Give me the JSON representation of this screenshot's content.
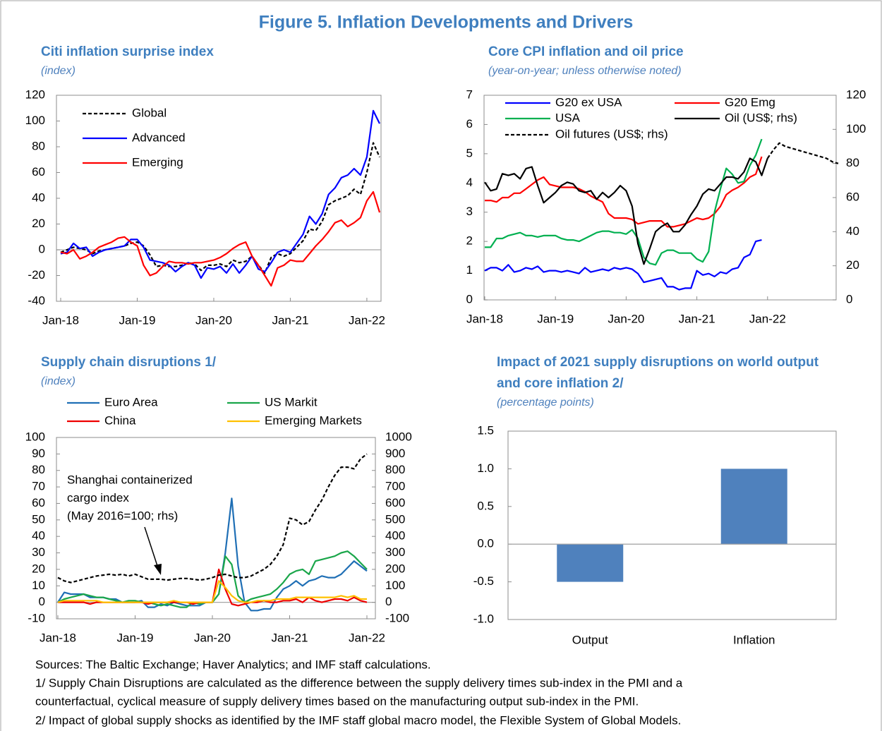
{
  "figure_title": "Figure 5. Inflation Developments and Drivers",
  "notes": [
    "Sources: The Baltic Exchange; Haver Analytics; and IMF staff calculations.",
    "1/ Supply Chain Disruptions are calculated as the difference between the supply delivery times sub-index in the PMI and a",
    "counterfactual, cyclical measure of supply delivery times based on the manufacturing output sub-index in the PMI.",
    "2/ Impact of global supply shocks as identified by the IMF staff global macro model, the Flexible System of Global Models."
  ],
  "chart_data": [
    {
      "type": "line",
      "title": "Citi inflation surprise index",
      "subtitle": "(index)",
      "categories": [
        "Jan-18",
        null,
        null,
        null,
        null,
        null,
        null,
        null,
        null,
        null,
        null,
        null,
        "Jan-19",
        null,
        null,
        null,
        null,
        null,
        null,
        null,
        null,
        null,
        null,
        null,
        "Jan-20",
        null,
        null,
        null,
        null,
        null,
        null,
        null,
        null,
        null,
        null,
        null,
        "Jan-21",
        null,
        null,
        null,
        null,
        null,
        null,
        null,
        null,
        null,
        null,
        null,
        "Jan-22",
        null,
        null
      ],
      "ylim": [
        -40,
        120
      ],
      "yticks": [
        -40,
        -20,
        0,
        20,
        40,
        60,
        80,
        100,
        120
      ],
      "series": [
        {
          "name": "Global",
          "color": "#000000",
          "dash": true,
          "values": [
            -2,
            0,
            2,
            1,
            0,
            -3,
            -1,
            0,
            1,
            2,
            3,
            5,
            6,
            3,
            -4,
            -13,
            -12,
            -13,
            -13,
            -12,
            -10,
            -11,
            -16,
            -12,
            -12,
            -11,
            -13,
            -8,
            -10,
            -9,
            -5,
            -12,
            -18,
            -6,
            -3,
            -5,
            -3,
            2,
            7,
            16,
            15,
            22,
            35,
            38,
            40,
            42,
            47,
            43,
            60,
            83,
            72
          ]
        },
        {
          "name": "Advanced",
          "color": "#0000ff",
          "values": [
            -3,
            -2,
            5,
            1,
            2,
            -5,
            -2,
            0,
            1,
            2,
            3,
            8,
            8,
            2,
            -8,
            -9,
            -10,
            -12,
            -17,
            -13,
            -10,
            -12,
            -22,
            -14,
            -15,
            -13,
            -18,
            -11,
            -18,
            -12,
            -5,
            -15,
            -17,
            -10,
            -2,
            0,
            -2,
            5,
            12,
            26,
            20,
            28,
            43,
            48,
            56,
            58,
            63,
            58,
            72,
            108,
            98
          ]
        },
        {
          "name": "Emerging",
          "color": "#ff0000",
          "values": [
            -2,
            -3,
            0,
            -7,
            -5,
            -2,
            2,
            4,
            6,
            9,
            10,
            6,
            3,
            -12,
            -20,
            -18,
            -13,
            -9,
            -10,
            -10,
            -11,
            -10,
            -10,
            -9,
            -8,
            -6,
            -3,
            1,
            4,
            6,
            -5,
            -12,
            -20,
            -28,
            -14,
            -12,
            -8,
            -9,
            -9,
            -3,
            3,
            8,
            14,
            21,
            23,
            18,
            21,
            25,
            38,
            45,
            29
          ]
        }
      ]
    },
    {
      "type": "line",
      "title": "Core CPI inflation and oil price",
      "subtitle": "(year-on-year; unless otherwise noted)",
      "categories": [
        "Jan-18",
        null,
        null,
        null,
        null,
        null,
        null,
        null,
        null,
        null,
        null,
        null,
        "Jan-19",
        null,
        null,
        null,
        null,
        null,
        null,
        null,
        null,
        null,
        null,
        null,
        "Jan-20",
        null,
        null,
        null,
        null,
        null,
        null,
        null,
        null,
        null,
        null,
        null,
        "Jan-21",
        null,
        null,
        null,
        null,
        null,
        null,
        null,
        null,
        null,
        null,
        null,
        "Jan-22",
        null,
        null,
        null,
        null,
        null,
        null,
        null,
        null,
        null,
        null,
        null,
        null
      ],
      "ylim": [
        0,
        7
      ],
      "yticks": [
        0,
        1,
        2,
        3,
        4,
        5,
        6,
        7
      ],
      "y2lim": [
        0,
        120
      ],
      "y2ticks": [
        0,
        20,
        40,
        60,
        80,
        100,
        120
      ],
      "series": [
        {
          "name": "G20 ex USA",
          "color": "#0000ff",
          "values": [
            1.0,
            1.1,
            1.1,
            1.0,
            1.2,
            0.95,
            1.0,
            1.1,
            1.05,
            1.15,
            0.95,
            1.0,
            1.0,
            0.95,
            1.0,
            0.95,
            0.9,
            1.1,
            0.95,
            1.0,
            1.05,
            1.0,
            1.1,
            1.05,
            1.1,
            1.05,
            0.9,
            0.6,
            0.65,
            0.7,
            0.75,
            0.45,
            0.45,
            0.35,
            0.4,
            0.4,
            1.0,
            0.85,
            0.9,
            0.8,
            0.95,
            0.9,
            1.05,
            1.1,
            1.45,
            1.55,
            2.0,
            2.05,
            null,
            null,
            null,
            null,
            null,
            null,
            null,
            null,
            null,
            null,
            null,
            null,
            null
          ]
        },
        {
          "name": "G20 Emg",
          "color": "#ff0000",
          "values": [
            3.4,
            3.4,
            3.35,
            3.5,
            3.5,
            3.65,
            3.65,
            3.8,
            3.95,
            4.1,
            4.2,
            3.95,
            3.9,
            3.85,
            3.85,
            3.85,
            3.8,
            3.7,
            3.55,
            3.45,
            3.35,
            2.95,
            2.8,
            2.8,
            2.8,
            2.75,
            2.6,
            2.65,
            2.7,
            2.7,
            2.7,
            2.5,
            2.5,
            2.55,
            2.6,
            2.7,
            2.8,
            2.75,
            2.8,
            2.95,
            3.2,
            3.6,
            3.75,
            3.85,
            4.0,
            4.2,
            4.3,
            4.9,
            null,
            null,
            null,
            null,
            null,
            null,
            null,
            null,
            null,
            null,
            null,
            null,
            null
          ]
        },
        {
          "name": "USA",
          "color": "#00b050",
          "values": [
            1.8,
            1.8,
            2.1,
            2.1,
            2.2,
            2.25,
            2.3,
            2.2,
            2.2,
            2.15,
            2.2,
            2.2,
            2.2,
            2.1,
            2.05,
            2.05,
            2.0,
            2.1,
            2.2,
            2.3,
            2.35,
            2.35,
            2.3,
            2.3,
            2.25,
            2.4,
            2.1,
            1.45,
            1.25,
            1.2,
            1.6,
            1.7,
            1.7,
            1.6,
            1.6,
            1.6,
            1.4,
            1.3,
            1.65,
            3.0,
            3.8,
            4.5,
            4.3,
            4.0,
            4.05,
            4.6,
            4.95,
            5.5,
            null,
            null,
            null,
            null,
            null,
            null,
            null,
            null,
            null,
            null,
            null,
            null,
            null
          ]
        },
        {
          "name": "Oil (US$; rhs)",
          "color": "#000000",
          "axis": "y2",
          "values": [
            69,
            64,
            65,
            74,
            73,
            74,
            71,
            77,
            78,
            67,
            57,
            60,
            63,
            67,
            69,
            68,
            64,
            63,
            64,
            59,
            63,
            60,
            63,
            67,
            64,
            55,
            33,
            21,
            30,
            40,
            43,
            45,
            40,
            40,
            44,
            50,
            55,
            62,
            65,
            64,
            68,
            72,
            72,
            71,
            75,
            83,
            81,
            73,
            83,
            null,
            null,
            null,
            null,
            null,
            null,
            null,
            null,
            null,
            null,
            null,
            null
          ]
        },
        {
          "name": "Oil futures (US$; rhs)",
          "color": "#000000",
          "dash": true,
          "axis": "y2",
          "values": [
            null,
            null,
            null,
            null,
            null,
            null,
            null,
            null,
            null,
            null,
            null,
            null,
            null,
            null,
            null,
            null,
            null,
            null,
            null,
            null,
            null,
            null,
            null,
            null,
            null,
            null,
            null,
            null,
            null,
            null,
            null,
            null,
            null,
            null,
            null,
            null,
            null,
            null,
            null,
            null,
            null,
            null,
            null,
            null,
            null,
            null,
            null,
            null,
            83,
            88,
            92,
            90,
            89,
            88,
            87,
            86,
            85,
            84,
            83,
            81,
            80
          ]
        }
      ]
    },
    {
      "type": "line",
      "title": "Supply chain disruptions 1/",
      "subtitle": "(index)",
      "categories": [
        "Jan-18",
        null,
        null,
        null,
        null,
        null,
        null,
        null,
        null,
        null,
        null,
        null,
        "Jan-19",
        null,
        null,
        null,
        null,
        null,
        null,
        null,
        null,
        null,
        null,
        null,
        "Jan-20",
        null,
        null,
        null,
        null,
        null,
        null,
        null,
        null,
        null,
        null,
        null,
        "Jan-21",
        null,
        null,
        null,
        null,
        null,
        null,
        null,
        null,
        null,
        null,
        null,
        "Jan-22"
      ],
      "ylim": [
        -10,
        100
      ],
      "yticks": [
        -10,
        0,
        10,
        20,
        30,
        40,
        50,
        60,
        70,
        80,
        90,
        100
      ],
      "y2lim": [
        -100,
        1000
      ],
      "y2ticks": [
        -100,
        0,
        100,
        200,
        300,
        400,
        500,
        600,
        700,
        800,
        900,
        1000
      ],
      "annotation": [
        "Shanghai containerized",
        "cargo index",
        "(May 2016=100; rhs)"
      ],
      "series": [
        {
          "name": "Euro Area",
          "color": "#1f6fb5",
          "values": [
            0,
            6,
            5,
            5,
            5,
            3,
            3,
            3,
            2,
            2,
            0,
            0,
            0,
            1,
            -3,
            -3,
            -1,
            -2,
            0,
            -1,
            -2,
            -2,
            -2,
            0,
            0,
            5,
            30,
            63,
            22,
            0,
            -5,
            -5,
            -4,
            -4,
            3,
            8,
            10,
            13,
            10,
            13,
            14,
            16,
            15,
            15,
            17,
            21,
            25,
            22,
            19
          ]
        },
        {
          "name": "US Markit",
          "color": "#1aa64a",
          "values": [
            0,
            2,
            3,
            4,
            5,
            4,
            3,
            3,
            2,
            1,
            0,
            1,
            1,
            0,
            0,
            -1,
            -2,
            -1,
            -2,
            -3,
            -3,
            0,
            -1,
            0,
            0,
            5,
            28,
            23,
            4,
            0,
            2,
            3,
            4,
            5,
            8,
            12,
            17,
            19,
            20,
            17,
            25,
            26,
            27,
            28,
            30,
            31,
            28,
            24,
            20
          ]
        },
        {
          "name": "China",
          "color": "#ee0000",
          "values": [
            0,
            0,
            0,
            0,
            0,
            -1,
            0,
            0,
            0,
            0,
            0,
            0,
            0,
            0,
            -1,
            0,
            0,
            0,
            0,
            0,
            0,
            -1,
            0,
            0,
            0,
            20,
            8,
            -1,
            -2,
            -1,
            0,
            0,
            1,
            0,
            0,
            1,
            1,
            2,
            0,
            3,
            1,
            0,
            1,
            2,
            2,
            1,
            3,
            1,
            0
          ]
        },
        {
          "name": "Emerging Markets",
          "color": "#ffc000",
          "values": [
            0,
            1,
            1,
            1,
            1,
            1,
            1,
            0,
            0,
            0,
            0,
            0,
            0,
            0,
            0,
            0,
            0,
            0,
            1,
            0,
            0,
            0,
            0,
            0,
            0,
            13,
            9,
            4,
            1,
            0,
            0,
            1,
            1,
            1,
            2,
            2,
            2,
            3,
            3,
            3,
            3,
            3,
            3,
            3,
            4,
            3,
            4,
            2,
            2
          ]
        },
        {
          "color": "#000000",
          "dash": true,
          "axis": "y2",
          "values": [
            150,
            130,
            120,
            130,
            140,
            150,
            160,
            165,
            170,
            165,
            170,
            160,
            170,
            155,
            140,
            140,
            140,
            135,
            140,
            145,
            145,
            140,
            135,
            140,
            150,
            165,
            170,
            160,
            150,
            150,
            160,
            180,
            200,
            230,
            280,
            350,
            510,
            500,
            470,
            490,
            560,
            620,
            700,
            770,
            820,
            820,
            810,
            870,
            900
          ]
        }
      ]
    },
    {
      "type": "bar",
      "title": [
        "Impact of 2021 supply disruptions on world output",
        "and core inflation 2/"
      ],
      "subtitle": "(percentage points)",
      "categories": [
        "Output",
        "Inflation"
      ],
      "values": [
        -0.5,
        1.0
      ],
      "color": "#4f81bd",
      "ylim": [
        -1,
        1.5
      ],
      "yticks": [
        {
          "value": -1,
          "label": "-1.0"
        },
        {
          "value": -0.5,
          "label": "-0.5"
        },
        {
          "value": 0,
          "label": "0.0"
        },
        {
          "value": 0.5,
          "label": "0.5"
        },
        {
          "value": 1,
          "label": "1.0"
        },
        {
          "value": 1.5,
          "label": "1.5"
        }
      ]
    }
  ]
}
